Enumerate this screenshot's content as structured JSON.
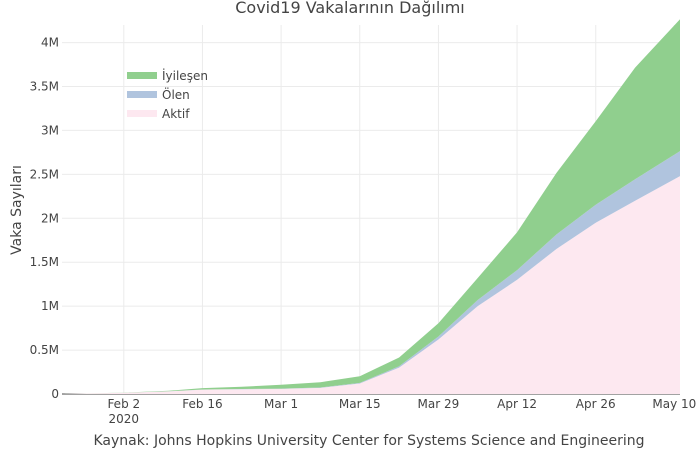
{
  "title": "Covid19 Vakalarının Dağılımı",
  "source": "Kaynak: Johns Hopkins University Center for Systems Science and Engineering",
  "chart_data": {
    "type": "area",
    "stacked": true,
    "title": "Covid19 Vakalarının Dağılımı",
    "xlabel": "",
    "ylabel": "Vaka Sayıları",
    "x_tick_labels": [
      "Feb 2",
      "Feb 16",
      "Mar 1",
      "Mar 15",
      "Mar 29",
      "Apr 12",
      "Apr 26",
      "May 10"
    ],
    "x_tick_dates": [
      "2020-02-02",
      "2020-02-16",
      "2020-03-01",
      "2020-03-15",
      "2020-03-29",
      "2020-04-12",
      "2020-04-26",
      "2020-05-10"
    ],
    "x_year_label": "2020",
    "xlim": [
      "2020-01-22",
      "2020-05-11"
    ],
    "y_tick_values": [
      0,
      500000,
      1000000,
      1500000,
      2000000,
      2500000,
      3000000,
      3500000,
      4000000
    ],
    "y_tick_labels": [
      "0",
      "0.5M",
      "1M",
      "1.5M",
      "2M",
      "2.5M",
      "3M",
      "3.5M",
      "4M"
    ],
    "ylim": [
      0,
      4200000
    ],
    "grid": true,
    "legend_position": "top-left",
    "x": [
      "2020-01-22",
      "2020-02-02",
      "2020-02-10",
      "2020-02-16",
      "2020-02-23",
      "2020-03-01",
      "2020-03-08",
      "2020-03-15",
      "2020-03-22",
      "2020-03-29",
      "2020-04-05",
      "2020-04-12",
      "2020-04-19",
      "2020-04-26",
      "2020-05-03",
      "2020-05-11"
    ],
    "series": [
      {
        "name": "Aktif",
        "color": "#fde8f0",
        "values": [
          0,
          15000,
          30000,
          50000,
          55000,
          58000,
          70000,
          120000,
          300000,
          620000,
          1000000,
          1300000,
          1650000,
          1950000,
          2200000,
          2480000
        ]
      },
      {
        "name": "Ölen",
        "color": "#b0c4de",
        "values": [
          0,
          300,
          900,
          1600,
          2400,
          3000,
          3800,
          6000,
          15000,
          35000,
          70000,
          110000,
          165000,
          205000,
          245000,
          285000
        ]
      },
      {
        "name": "İyileşen",
        "color": "#90cf8e",
        "values": [
          0,
          1000,
          5000,
          15000,
          25000,
          45000,
          60000,
          75000,
          100000,
          150000,
          250000,
          430000,
          700000,
          950000,
          1270000,
          1500000
        ]
      }
    ]
  }
}
